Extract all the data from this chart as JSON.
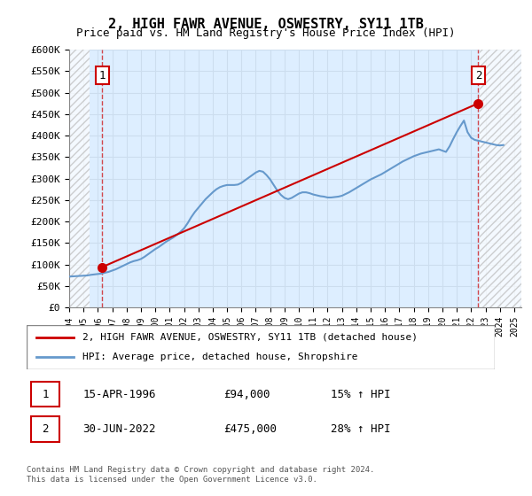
{
  "title": "2, HIGH FAWR AVENUE, OSWESTRY, SY11 1TB",
  "subtitle": "Price paid vs. HM Land Registry's House Price Index (HPI)",
  "xlabel": "",
  "ylabel": "",
  "ylim": [
    0,
    600000
  ],
  "yticks": [
    0,
    50000,
    100000,
    150000,
    200000,
    250000,
    300000,
    350000,
    400000,
    450000,
    500000,
    550000,
    600000
  ],
  "ytick_labels": [
    "£0",
    "£50K",
    "£100K",
    "£150K",
    "£200K",
    "£250K",
    "£300K",
    "£350K",
    "£400K",
    "£450K",
    "£500K",
    "£550K",
    "£600K"
  ],
  "xlim_start": 1994.0,
  "xlim_end": 2025.5,
  "hatch_left_end": 1995.4,
  "hatch_right_start": 2022.6,
  "sale1_x": 1996.29,
  "sale1_y": 94000,
  "sale2_x": 2022.5,
  "sale2_y": 475000,
  "legend_line1": "2, HIGH FAWR AVENUE, OSWESTRY, SY11 1TB (detached house)",
  "legend_line2": "HPI: Average price, detached house, Shropshire",
  "annotation1_label": "1",
  "annotation1_date": "15-APR-1996",
  "annotation1_price": "£94,000",
  "annotation1_hpi": "15% ↑ HPI",
  "annotation2_label": "2",
  "annotation2_date": "30-JUN-2022",
  "annotation2_price": "£475,000",
  "annotation2_hpi": "28% ↑ HPI",
  "footer": "Contains HM Land Registry data © Crown copyright and database right 2024.\nThis data is licensed under the Open Government Licence v3.0.",
  "line_red_color": "#cc0000",
  "line_blue_color": "#6699cc",
  "grid_color": "#ccddee",
  "hatch_color": "#cccccc",
  "bg_color": "#ddeeff",
  "hpi_data_x": [
    1994.0,
    1994.25,
    1994.5,
    1994.75,
    1995.0,
    1995.25,
    1995.5,
    1995.75,
    1996.0,
    1996.25,
    1996.5,
    1996.75,
    1997.0,
    1997.25,
    1997.5,
    1997.75,
    1998.0,
    1998.25,
    1998.5,
    1998.75,
    1999.0,
    1999.25,
    1999.5,
    1999.75,
    2000.0,
    2000.25,
    2000.5,
    2000.75,
    2001.0,
    2001.25,
    2001.5,
    2001.75,
    2002.0,
    2002.25,
    2002.5,
    2002.75,
    2003.0,
    2003.25,
    2003.5,
    2003.75,
    2004.0,
    2004.25,
    2004.5,
    2004.75,
    2005.0,
    2005.25,
    2005.5,
    2005.75,
    2006.0,
    2006.25,
    2006.5,
    2006.75,
    2007.0,
    2007.25,
    2007.5,
    2007.75,
    2008.0,
    2008.25,
    2008.5,
    2008.75,
    2009.0,
    2009.25,
    2009.5,
    2009.75,
    2010.0,
    2010.25,
    2010.5,
    2010.75,
    2011.0,
    2011.25,
    2011.5,
    2011.75,
    2012.0,
    2012.25,
    2012.5,
    2012.75,
    2013.0,
    2013.25,
    2013.5,
    2013.75,
    2014.0,
    2014.25,
    2014.5,
    2014.75,
    2015.0,
    2015.25,
    2015.5,
    2015.75,
    2016.0,
    2016.25,
    2016.5,
    2016.75,
    2017.0,
    2017.25,
    2017.5,
    2017.75,
    2018.0,
    2018.25,
    2018.5,
    2018.75,
    2019.0,
    2019.25,
    2019.5,
    2019.75,
    2020.0,
    2020.25,
    2020.5,
    2020.75,
    2021.0,
    2021.25,
    2021.5,
    2021.75,
    2022.0,
    2022.25,
    2022.5,
    2022.75,
    2023.0,
    2023.25,
    2023.5,
    2023.75,
    2024.0,
    2024.25
  ],
  "hpi_data_y": [
    72000,
    72500,
    73000,
    73500,
    74000,
    74500,
    76000,
    77000,
    78000,
    79000,
    81000,
    83000,
    86000,
    89000,
    93000,
    97000,
    101000,
    105000,
    108000,
    110000,
    113000,
    118000,
    124000,
    130000,
    136000,
    141000,
    147000,
    153000,
    158000,
    163000,
    169000,
    176000,
    184000,
    196000,
    210000,
    222000,
    232000,
    242000,
    252000,
    260000,
    268000,
    275000,
    280000,
    283000,
    285000,
    285000,
    285000,
    286000,
    290000,
    296000,
    302000,
    308000,
    314000,
    318000,
    316000,
    308000,
    298000,
    285000,
    272000,
    262000,
    255000,
    252000,
    255000,
    260000,
    265000,
    268000,
    268000,
    266000,
    263000,
    261000,
    259000,
    258000,
    256000,
    256000,
    257000,
    258000,
    260000,
    264000,
    268000,
    273000,
    278000,
    283000,
    288000,
    293000,
    298000,
    302000,
    306000,
    310000,
    315000,
    320000,
    325000,
    330000,
    335000,
    340000,
    344000,
    348000,
    352000,
    355000,
    358000,
    360000,
    362000,
    364000,
    366000,
    368000,
    365000,
    362000,
    375000,
    392000,
    408000,
    422000,
    435000,
    408000,
    395000,
    390000,
    388000,
    386000,
    384000,
    382000,
    380000,
    378000,
    377000,
    378000
  ],
  "price_data_x": [
    1996.29,
    2022.5
  ],
  "price_data_y": [
    94000,
    475000
  ]
}
